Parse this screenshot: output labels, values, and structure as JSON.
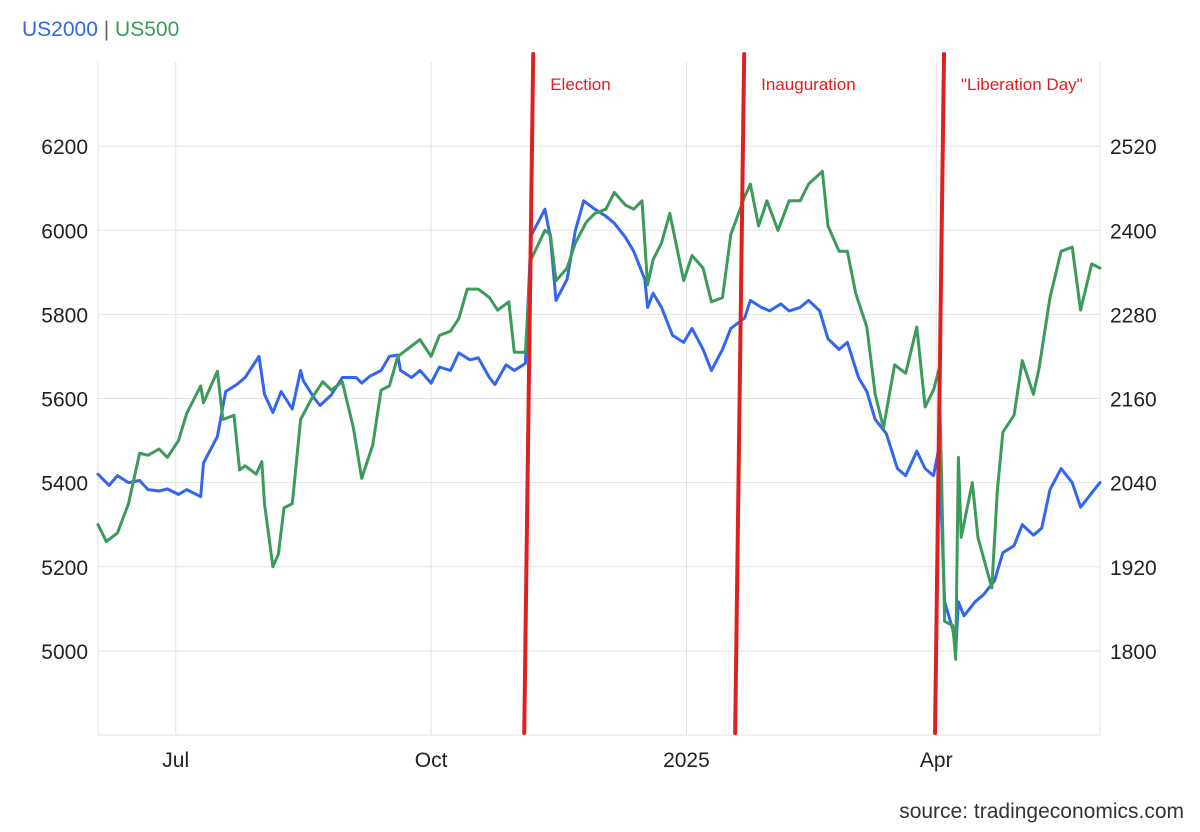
{
  "legend": {
    "series1": "US2000",
    "separator": "|",
    "series2": "US500"
  },
  "source": "source: tradingeconomics.com",
  "colors": {
    "us2000": "#3366ee",
    "us500": "#3c9a5a",
    "events": "#e02020",
    "grid": "#e3e3e3"
  },
  "chart_data": {
    "type": "line",
    "x_start": "2024-06-03",
    "x_end": "2025-05-30",
    "x_ticks": [
      {
        "label": "Jul",
        "date": "2024-07-01"
      },
      {
        "label": "Oct",
        "date": "2024-10-01"
      },
      {
        "label": "2025",
        "date": "2025-01-01"
      },
      {
        "label": "Apr",
        "date": "2025-04-01"
      }
    ],
    "left_axis": {
      "ticks": [
        5000,
        5200,
        5400,
        5600,
        5800,
        6000,
        6200
      ],
      "range": [
        4800,
        6400
      ]
    },
    "right_axis": {
      "ticks": [
        1800,
        1920,
        2040,
        2160,
        2280,
        2400,
        2520
      ],
      "range": [
        1680,
        2640
      ]
    },
    "grid": true,
    "events": [
      {
        "label": "Election",
        "date": "2024-11-05"
      },
      {
        "label": "Inauguration",
        "date": "2025-01-20"
      },
      {
        "label": "\"Liberation Day\"",
        "date": "2025-04-02"
      }
    ],
    "series": [
      {
        "name": "US2000",
        "axis": "right",
        "points": [
          [
            "2024-06-03",
            2052
          ],
          [
            "2024-06-07",
            2036
          ],
          [
            "2024-06-10",
            2050
          ],
          [
            "2024-06-14",
            2040
          ],
          [
            "2024-06-18",
            2043
          ],
          [
            "2024-06-21",
            2030
          ],
          [
            "2024-06-25",
            2028
          ],
          [
            "2024-06-28",
            2031
          ],
          [
            "2024-07-02",
            2023
          ],
          [
            "2024-07-05",
            2030
          ],
          [
            "2024-07-10",
            2020
          ],
          [
            "2024-07-11",
            2068
          ],
          [
            "2024-07-16",
            2106
          ],
          [
            "2024-07-19",
            2170
          ],
          [
            "2024-07-23",
            2180
          ],
          [
            "2024-07-26",
            2190
          ],
          [
            "2024-07-31",
            2220
          ],
          [
            "2024-08-02",
            2166
          ],
          [
            "2024-08-05",
            2140
          ],
          [
            "2024-08-08",
            2170
          ],
          [
            "2024-08-12",
            2145
          ],
          [
            "2024-08-15",
            2200
          ],
          [
            "2024-08-16",
            2185
          ],
          [
            "2024-08-20",
            2160
          ],
          [
            "2024-08-22",
            2150
          ],
          [
            "2024-08-26",
            2165
          ],
          [
            "2024-08-30",
            2190
          ],
          [
            "2024-09-04",
            2190
          ],
          [
            "2024-09-06",
            2182
          ],
          [
            "2024-09-09",
            2192
          ],
          [
            "2024-09-13",
            2200
          ],
          [
            "2024-09-16",
            2220
          ],
          [
            "2024-09-19",
            2222
          ],
          [
            "2024-09-20",
            2200
          ],
          [
            "2024-09-24",
            2190
          ],
          [
            "2024-09-27",
            2200
          ],
          [
            "2024-10-01",
            2182
          ],
          [
            "2024-10-04",
            2205
          ],
          [
            "2024-10-08",
            2200
          ],
          [
            "2024-10-11",
            2225
          ],
          [
            "2024-10-15",
            2215
          ],
          [
            "2024-10-18",
            2218
          ],
          [
            "2024-10-22",
            2190
          ],
          [
            "2024-10-24",
            2180
          ],
          [
            "2024-10-28",
            2208
          ],
          [
            "2024-10-31",
            2200
          ],
          [
            "2024-11-04",
            2210
          ],
          [
            "2024-11-06",
            2392
          ],
          [
            "2024-11-11",
            2430
          ],
          [
            "2024-11-13",
            2390
          ],
          [
            "2024-11-15",
            2300
          ],
          [
            "2024-11-19",
            2330
          ],
          [
            "2024-11-22",
            2400
          ],
          [
            "2024-11-25",
            2442
          ],
          [
            "2024-11-29",
            2430
          ],
          [
            "2024-12-03",
            2420
          ],
          [
            "2024-12-06",
            2410
          ],
          [
            "2024-12-10",
            2390
          ],
          [
            "2024-12-13",
            2370
          ],
          [
            "2024-12-17",
            2330
          ],
          [
            "2024-12-18",
            2290
          ],
          [
            "2024-12-20",
            2310
          ],
          [
            "2024-12-23",
            2290
          ],
          [
            "2024-12-27",
            2250
          ],
          [
            "2024-12-31",
            2240
          ],
          [
            "2025-01-03",
            2260
          ],
          [
            "2025-01-07",
            2230
          ],
          [
            "2025-01-10",
            2200
          ],
          [
            "2025-01-14",
            2230
          ],
          [
            "2025-01-17",
            2260
          ],
          [
            "2025-01-22",
            2275
          ],
          [
            "2025-01-24",
            2300
          ],
          [
            "2025-01-28",
            2290
          ],
          [
            "2025-01-31",
            2285
          ],
          [
            "2025-02-04",
            2295
          ],
          [
            "2025-02-07",
            2285
          ],
          [
            "2025-02-11",
            2290
          ],
          [
            "2025-02-14",
            2300
          ],
          [
            "2025-02-18",
            2285
          ],
          [
            "2025-02-21",
            2245
          ],
          [
            "2025-02-25",
            2230
          ],
          [
            "2025-02-28",
            2240
          ],
          [
            "2025-03-04",
            2190
          ],
          [
            "2025-03-07",
            2170
          ],
          [
            "2025-03-10",
            2130
          ],
          [
            "2025-03-14",
            2110
          ],
          [
            "2025-03-18",
            2060
          ],
          [
            "2025-03-21",
            2050
          ],
          [
            "2025-03-25",
            2085
          ],
          [
            "2025-03-28",
            2060
          ],
          [
            "2025-03-31",
            2050
          ],
          [
            "2025-04-02",
            2090
          ],
          [
            "2025-04-04",
            1870
          ],
          [
            "2025-04-07",
            1830
          ],
          [
            "2025-04-08",
            1800
          ],
          [
            "2025-04-09",
            1870
          ],
          [
            "2025-04-11",
            1850
          ],
          [
            "2025-04-15",
            1870
          ],
          [
            "2025-04-18",
            1880
          ],
          [
            "2025-04-22",
            1900
          ],
          [
            "2025-04-25",
            1940
          ],
          [
            "2025-04-29",
            1950
          ],
          [
            "2025-05-02",
            1980
          ],
          [
            "2025-05-06",
            1965
          ],
          [
            "2025-05-09",
            1975
          ],
          [
            "2025-05-12",
            2030
          ],
          [
            "2025-05-16",
            2060
          ],
          [
            "2025-05-20",
            2040
          ],
          [
            "2025-05-23",
            2005
          ],
          [
            "2025-05-28",
            2030
          ],
          [
            "2025-05-30",
            2040
          ]
        ]
      },
      {
        "name": "US500",
        "axis": "left",
        "points": [
          [
            "2024-06-03",
            5300
          ],
          [
            "2024-06-06",
            5260
          ],
          [
            "2024-06-10",
            5280
          ],
          [
            "2024-06-14",
            5350
          ],
          [
            "2024-06-18",
            5470
          ],
          [
            "2024-06-21",
            5465
          ],
          [
            "2024-06-25",
            5480
          ],
          [
            "2024-06-28",
            5460
          ],
          [
            "2024-07-02",
            5500
          ],
          [
            "2024-07-05",
            5565
          ],
          [
            "2024-07-10",
            5630
          ],
          [
            "2024-07-11",
            5590
          ],
          [
            "2024-07-16",
            5665
          ],
          [
            "2024-07-18",
            5550
          ],
          [
            "2024-07-22",
            5560
          ],
          [
            "2024-07-24",
            5430
          ],
          [
            "2024-07-26",
            5440
          ],
          [
            "2024-07-30",
            5420
          ],
          [
            "2024-08-01",
            5450
          ],
          [
            "2024-08-02",
            5350
          ],
          [
            "2024-08-05",
            5200
          ],
          [
            "2024-08-07",
            5230
          ],
          [
            "2024-08-09",
            5340
          ],
          [
            "2024-08-12",
            5350
          ],
          [
            "2024-08-15",
            5550
          ],
          [
            "2024-08-19",
            5600
          ],
          [
            "2024-08-23",
            5640
          ],
          [
            "2024-08-26",
            5620
          ],
          [
            "2024-08-30",
            5640
          ],
          [
            "2024-09-03",
            5530
          ],
          [
            "2024-09-06",
            5410
          ],
          [
            "2024-09-10",
            5490
          ],
          [
            "2024-09-13",
            5620
          ],
          [
            "2024-09-16",
            5630
          ],
          [
            "2024-09-19",
            5700
          ],
          [
            "2024-09-23",
            5720
          ],
          [
            "2024-09-27",
            5740
          ],
          [
            "2024-10-01",
            5700
          ],
          [
            "2024-10-04",
            5750
          ],
          [
            "2024-10-08",
            5760
          ],
          [
            "2024-10-11",
            5790
          ],
          [
            "2024-10-14",
            5860
          ],
          [
            "2024-10-18",
            5860
          ],
          [
            "2024-10-22",
            5840
          ],
          [
            "2024-10-25",
            5810
          ],
          [
            "2024-10-29",
            5830
          ],
          [
            "2024-10-31",
            5710
          ],
          [
            "2024-11-04",
            5710
          ],
          [
            "2024-11-06",
            5930
          ],
          [
            "2024-11-11",
            6000
          ],
          [
            "2024-11-13",
            5990
          ],
          [
            "2024-11-15",
            5880
          ],
          [
            "2024-11-19",
            5910
          ],
          [
            "2024-11-22",
            5970
          ],
          [
            "2024-11-26",
            6020
          ],
          [
            "2024-11-29",
            6040
          ],
          [
            "2024-12-03",
            6050
          ],
          [
            "2024-12-06",
            6090
          ],
          [
            "2024-12-10",
            6060
          ],
          [
            "2024-12-13",
            6050
          ],
          [
            "2024-12-16",
            6070
          ],
          [
            "2024-12-18",
            5870
          ],
          [
            "2024-12-20",
            5930
          ],
          [
            "2024-12-23",
            5970
          ],
          [
            "2024-12-26",
            6040
          ],
          [
            "2024-12-31",
            5880
          ],
          [
            "2025-01-03",
            5940
          ],
          [
            "2025-01-07",
            5910
          ],
          [
            "2025-01-10",
            5830
          ],
          [
            "2025-01-14",
            5840
          ],
          [
            "2025-01-17",
            5990
          ],
          [
            "2025-01-22",
            6080
          ],
          [
            "2025-01-24",
            6110
          ],
          [
            "2025-01-27",
            6010
          ],
          [
            "2025-01-30",
            6070
          ],
          [
            "2025-02-03",
            6000
          ],
          [
            "2025-02-07",
            6070
          ],
          [
            "2025-02-11",
            6070
          ],
          [
            "2025-02-14",
            6110
          ],
          [
            "2025-02-19",
            6140
          ],
          [
            "2025-02-21",
            6010
          ],
          [
            "2025-02-25",
            5950
          ],
          [
            "2025-02-28",
            5950
          ],
          [
            "2025-03-03",
            5850
          ],
          [
            "2025-03-07",
            5770
          ],
          [
            "2025-03-10",
            5610
          ],
          [
            "2025-03-13",
            5530
          ],
          [
            "2025-03-17",
            5680
          ],
          [
            "2025-03-21",
            5660
          ],
          [
            "2025-03-25",
            5770
          ],
          [
            "2025-03-28",
            5580
          ],
          [
            "2025-03-31",
            5620
          ],
          [
            "2025-04-02",
            5670
          ],
          [
            "2025-04-03",
            5390
          ],
          [
            "2025-04-04",
            5070
          ],
          [
            "2025-04-07",
            5060
          ],
          [
            "2025-04-08",
            4980
          ],
          [
            "2025-04-09",
            5460
          ],
          [
            "2025-04-10",
            5270
          ],
          [
            "2025-04-14",
            5400
          ],
          [
            "2025-04-16",
            5270
          ],
          [
            "2025-04-21",
            5150
          ],
          [
            "2025-04-23",
            5380
          ],
          [
            "2025-04-25",
            5520
          ],
          [
            "2025-04-29",
            5560
          ],
          [
            "2025-05-02",
            5690
          ],
          [
            "2025-05-06",
            5610
          ],
          [
            "2025-05-08",
            5670
          ],
          [
            "2025-05-12",
            5840
          ],
          [
            "2025-05-16",
            5950
          ],
          [
            "2025-05-20",
            5960
          ],
          [
            "2025-05-23",
            5810
          ],
          [
            "2025-05-27",
            5920
          ],
          [
            "2025-05-30",
            5910
          ]
        ]
      }
    ]
  }
}
